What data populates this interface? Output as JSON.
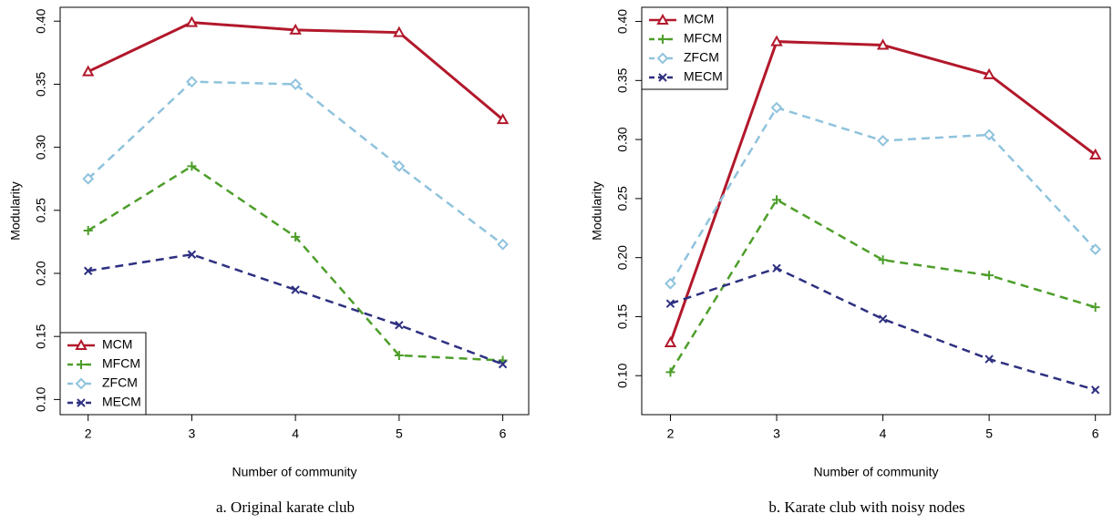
{
  "chart_data": [
    {
      "type": "line",
      "caption": "a. Original karate club",
      "xlabel": "Number of community",
      "ylabel": "Modularity",
      "x": [
        2,
        3,
        4,
        5,
        6
      ],
      "xlim": [
        1.73,
        6.25
      ],
      "xticks": [
        2,
        3,
        4,
        5,
        6
      ],
      "ylim": [
        0.088,
        0.411
      ],
      "yticks": [
        {
          "value": 0.1,
          "label": "0.10"
        },
        {
          "value": 0.15,
          "label": "0.15"
        },
        {
          "value": 0.2,
          "label": "0.20"
        },
        {
          "value": 0.25,
          "label": "0.25"
        },
        {
          "value": 0.3,
          "label": "0.30"
        },
        {
          "value": 0.35,
          "label": "0.35"
        },
        {
          "value": 0.4,
          "label": "0.40"
        }
      ],
      "legend": "bottom-left",
      "series": [
        {
          "name": "MCM",
          "color": "#b2182b",
          "marker": "triangle",
          "dashed": false,
          "values": [
            0.36,
            0.399,
            0.393,
            0.391,
            0.322
          ]
        },
        {
          "name": "MFCM",
          "color": "#4d9e2a",
          "marker": "plus",
          "dashed": true,
          "values": [
            0.234,
            0.285,
            0.229,
            0.135,
            0.131
          ]
        },
        {
          "name": "ZFCM",
          "color": "#8fc3dd",
          "marker": "diamond",
          "dashed": true,
          "values": [
            0.275,
            0.352,
            0.35,
            0.285,
            0.223
          ]
        },
        {
          "name": "MECM",
          "color": "#2e3080",
          "marker": "cross",
          "dashed": true,
          "values": [
            0.202,
            0.215,
            0.187,
            0.159,
            0.128
          ]
        }
      ]
    },
    {
      "type": "line",
      "caption": "b. Karate club with noisy nodes",
      "xlabel": "Number of community",
      "ylabel": "Modularity",
      "x": [
        2,
        3,
        4,
        5,
        6
      ],
      "xlim": [
        1.73,
        6.14
      ],
      "xticks": [
        2,
        3,
        4,
        5,
        6
      ],
      "ylim": [
        0.067,
        0.412
      ],
      "yticks": [
        {
          "value": 0.1,
          "label": "0.10"
        },
        {
          "value": 0.15,
          "label": "0.15"
        },
        {
          "value": 0.2,
          "label": "0.20"
        },
        {
          "value": 0.25,
          "label": "0.25"
        },
        {
          "value": 0.3,
          "label": "0.30"
        },
        {
          "value": 0.35,
          "label": "0.35"
        },
        {
          "value": 0.4,
          "label": "0.40"
        }
      ],
      "legend": "top-left",
      "series": [
        {
          "name": "MCM",
          "color": "#b2182b",
          "marker": "triangle",
          "dashed": false,
          "values": [
            0.128,
            0.383,
            0.38,
            0.355,
            0.287
          ]
        },
        {
          "name": "MFCM",
          "color": "#4d9e2a",
          "marker": "plus",
          "dashed": true,
          "values": [
            0.103,
            0.249,
            0.198,
            0.185,
            0.158
          ]
        },
        {
          "name": "ZFCM",
          "color": "#8fc3dd",
          "marker": "diamond",
          "dashed": true,
          "values": [
            0.178,
            0.327,
            0.299,
            0.304,
            0.207
          ]
        },
        {
          "name": "MECM",
          "color": "#2e3080",
          "marker": "cross",
          "dashed": true,
          "values": [
            0.161,
            0.191,
            0.148,
            0.114,
            0.088
          ]
        }
      ]
    }
  ]
}
